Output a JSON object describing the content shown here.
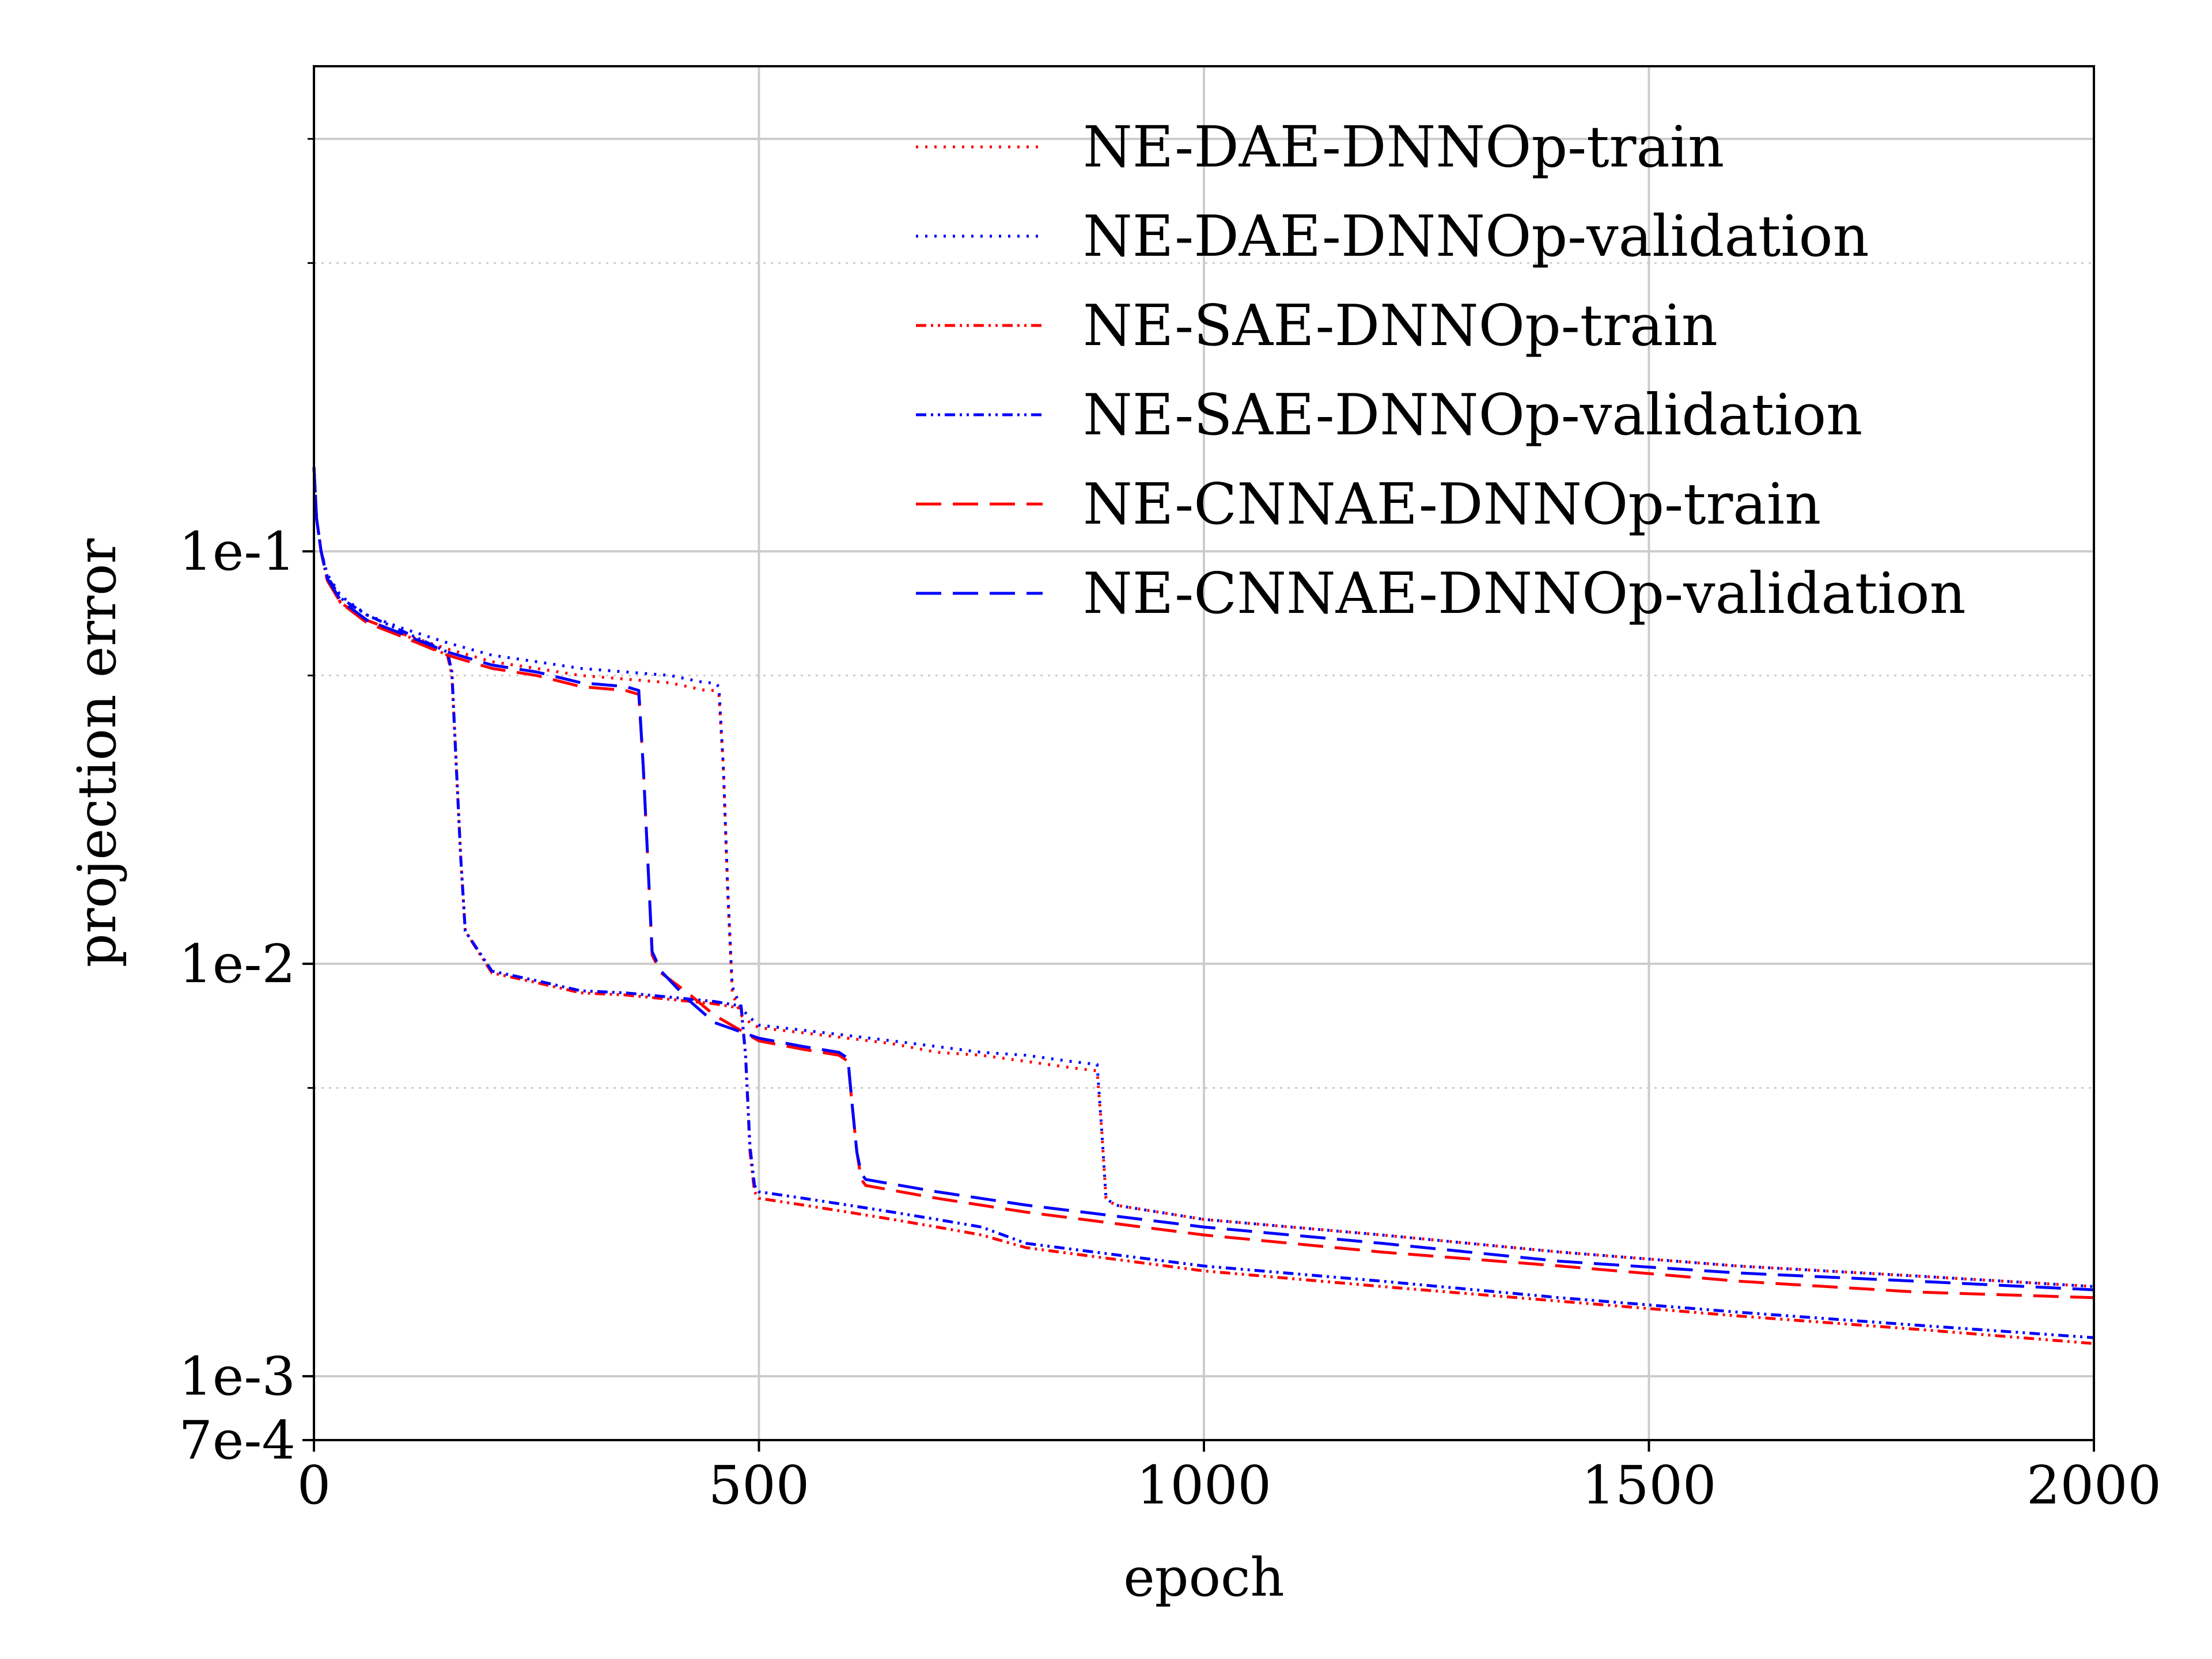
{
  "chart_data": {
    "type": "line",
    "title": "",
    "xlabel": "epoch",
    "ylabel": "projection error",
    "xlim": [
      0,
      2000
    ],
    "ylim": [
      0.0007,
      1.5
    ],
    "yscale": "log",
    "x_ticks": [
      0,
      500,
      1000,
      1500,
      2000
    ],
    "x_tick_labels": [
      "0",
      "500",
      "1000",
      "1500",
      "2000"
    ],
    "y_ticks": [
      0.0007,
      0.001,
      0.01,
      0.1
    ],
    "y_tick_labels": [
      "7e-4",
      "1e-3",
      "1e-2",
      "1e-1"
    ],
    "grid": true,
    "legend_position": "top-right",
    "series": [
      {
        "name": "NE-DAE-DNNOp-train",
        "color": "#ff0000",
        "linestyle": "dotted",
        "x": [
          0,
          3,
          8,
          15,
          30,
          60,
          100,
          150,
          200,
          250,
          300,
          350,
          400,
          440,
          450,
          455,
          460,
          465,
          470,
          480,
          490,
          500,
          550,
          600,
          650,
          700,
          750,
          800,
          850,
          880,
          885,
          890,
          900,
          1000,
          1200,
          1400,
          1600,
          1800,
          2000
        ],
        "y": [
          0.16,
          0.12,
          0.1,
          0.085,
          0.075,
          0.068,
          0.063,
          0.058,
          0.054,
          0.052,
          0.05,
          0.049,
          0.048,
          0.046,
          0.046,
          0.045,
          0.03,
          0.015,
          0.0085,
          0.0075,
          0.0072,
          0.007,
          0.0068,
          0.0066,
          0.0064,
          0.0061,
          0.006,
          0.0058,
          0.0056,
          0.0055,
          0.004,
          0.0027,
          0.0026,
          0.0024,
          0.0022,
          0.002,
          0.00185,
          0.00175,
          0.00165
        ]
      },
      {
        "name": "NE-DAE-DNNOp-validation",
        "color": "#0000ff",
        "linestyle": "dotted",
        "x": [
          0,
          3,
          8,
          15,
          30,
          60,
          100,
          150,
          200,
          250,
          300,
          350,
          400,
          440,
          450,
          455,
          460,
          465,
          470,
          480,
          490,
          500,
          550,
          600,
          650,
          700,
          750,
          800,
          850,
          880,
          885,
          890,
          900,
          1000,
          1200,
          1400,
          1600,
          1800,
          2000
        ],
        "y": [
          0.16,
          0.12,
          0.1,
          0.088,
          0.078,
          0.07,
          0.065,
          0.06,
          0.056,
          0.054,
          0.052,
          0.051,
          0.05,
          0.048,
          0.048,
          0.047,
          0.03,
          0.015,
          0.0088,
          0.0078,
          0.0074,
          0.0071,
          0.0069,
          0.0067,
          0.0065,
          0.0063,
          0.0061,
          0.006,
          0.0058,
          0.0057,
          0.004,
          0.0027,
          0.0026,
          0.0024,
          0.0022,
          0.002,
          0.00185,
          0.00175,
          0.00165
        ]
      },
      {
        "name": "NE-SAE-DNNOp-train",
        "color": "#ff0000",
        "linestyle": "dashdotdot",
        "x": [
          0,
          3,
          8,
          15,
          30,
          60,
          100,
          150,
          155,
          160,
          165,
          170,
          200,
          250,
          300,
          350,
          400,
          450,
          480,
          485,
          490,
          495,
          500,
          550,
          600,
          650,
          700,
          750,
          800,
          1000,
          1200,
          1400,
          1600,
          1800,
          2000
        ],
        "y": [
          0.16,
          0.12,
          0.1,
          0.085,
          0.075,
          0.068,
          0.063,
          0.056,
          0.05,
          0.03,
          0.018,
          0.012,
          0.0095,
          0.009,
          0.0085,
          0.0084,
          0.0082,
          0.008,
          0.0078,
          0.006,
          0.0035,
          0.0028,
          0.0027,
          0.0026,
          0.0025,
          0.0024,
          0.0023,
          0.0022,
          0.00205,
          0.0018,
          0.00165,
          0.00152,
          0.0014,
          0.0013,
          0.0012
        ]
      },
      {
        "name": "NE-SAE-DNNOp-validation",
        "color": "#0000ff",
        "linestyle": "dashdotdot",
        "x": [
          0,
          3,
          8,
          15,
          30,
          60,
          100,
          150,
          155,
          160,
          165,
          170,
          200,
          250,
          300,
          350,
          400,
          450,
          480,
          485,
          490,
          495,
          500,
          550,
          600,
          650,
          700,
          750,
          800,
          1000,
          1200,
          1400,
          1600,
          1800,
          2000
        ],
        "y": [
          0.16,
          0.12,
          0.1,
          0.087,
          0.077,
          0.07,
          0.064,
          0.057,
          0.051,
          0.03,
          0.018,
          0.012,
          0.0096,
          0.0091,
          0.0086,
          0.0085,
          0.0083,
          0.0081,
          0.0079,
          0.006,
          0.0036,
          0.0029,
          0.0028,
          0.0027,
          0.0026,
          0.0025,
          0.0024,
          0.0023,
          0.0021,
          0.00185,
          0.0017,
          0.00155,
          0.00143,
          0.00133,
          0.00124
        ]
      },
      {
        "name": "NE-CNNAE-DNNOp-train",
        "color": "#ff0000",
        "linestyle": "dashed",
        "x": [
          0,
          3,
          8,
          15,
          30,
          60,
          100,
          150,
          200,
          250,
          300,
          350,
          365,
          370,
          375,
          380,
          390,
          420,
          450,
          500,
          550,
          590,
          600,
          605,
          610,
          615,
          620,
          700,
          800,
          1000,
          1200,
          1400,
          1600,
          1800,
          2000
        ],
        "y": [
          0.16,
          0.12,
          0.1,
          0.085,
          0.075,
          0.067,
          0.062,
          0.056,
          0.052,
          0.05,
          0.047,
          0.046,
          0.045,
          0.03,
          0.018,
          0.0105,
          0.0095,
          0.0085,
          0.0075,
          0.0065,
          0.0062,
          0.006,
          0.0058,
          0.0045,
          0.0035,
          0.003,
          0.0029,
          0.0027,
          0.0025,
          0.0022,
          0.002,
          0.00185,
          0.0017,
          0.0016,
          0.00155
        ]
      },
      {
        "name": "NE-CNNAE-DNNOp-validation",
        "color": "#0000ff",
        "linestyle": "dashed",
        "x": [
          0,
          3,
          8,
          15,
          30,
          60,
          100,
          150,
          200,
          250,
          300,
          350,
          365,
          370,
          375,
          380,
          390,
          420,
          450,
          500,
          550,
          590,
          600,
          605,
          610,
          615,
          620,
          700,
          800,
          1000,
          1200,
          1400,
          1600,
          1800,
          2000
        ],
        "y": [
          0.16,
          0.12,
          0.1,
          0.086,
          0.076,
          0.068,
          0.063,
          0.057,
          0.053,
          0.051,
          0.048,
          0.047,
          0.046,
          0.03,
          0.018,
          0.0107,
          0.0096,
          0.0082,
          0.0072,
          0.0066,
          0.0063,
          0.0061,
          0.0059,
          0.0045,
          0.0035,
          0.0031,
          0.003,
          0.0028,
          0.0026,
          0.0023,
          0.0021,
          0.0019,
          0.00178,
          0.0017,
          0.00162
        ]
      }
    ]
  }
}
